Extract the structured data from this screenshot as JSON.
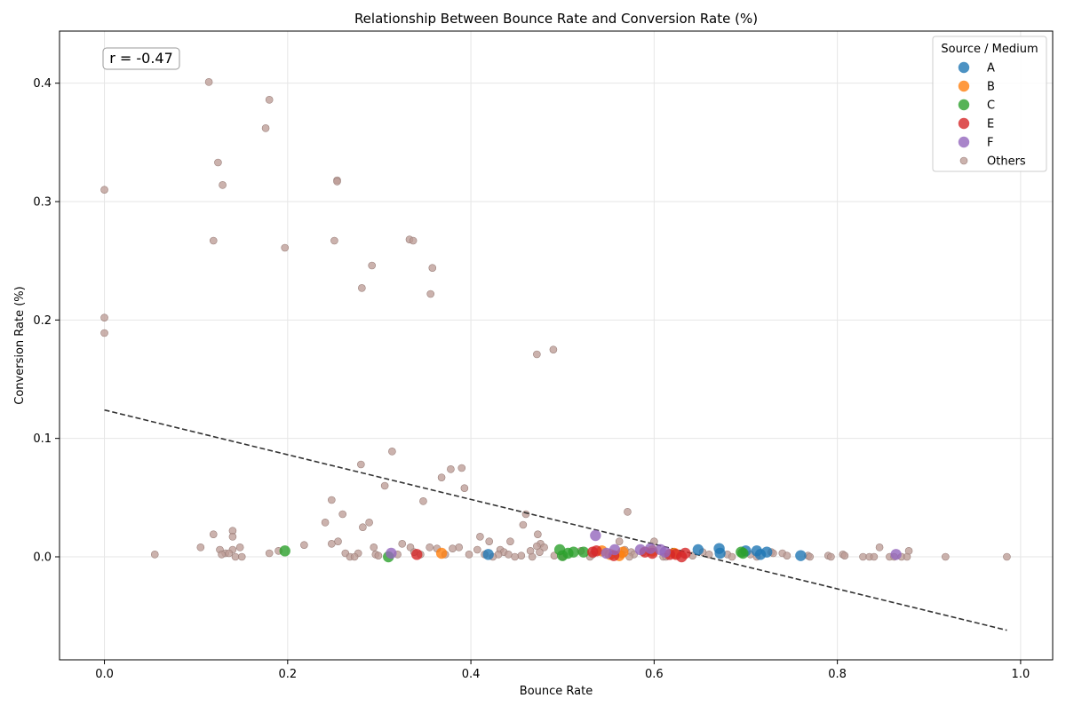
{
  "chart_data": {
    "type": "scatter",
    "title": "Relationship Between Bounce Rate and Conversion Rate (%)",
    "xlabel": "Bounce Rate",
    "ylabel": "Conversion Rate (%)",
    "xlim": [
      -0.049,
      1.035
    ],
    "ylim": [
      -0.087,
      0.444
    ],
    "xticks": [
      0.0,
      0.2,
      0.4,
      0.6,
      0.8,
      1.0
    ],
    "xtick_labels": [
      "0.0",
      "0.2",
      "0.4",
      "0.6",
      "0.8",
      "1.0"
    ],
    "yticks": [
      0.0,
      0.1,
      0.2,
      0.3,
      0.4
    ],
    "ytick_labels": [
      "0.0",
      "0.1",
      "0.2",
      "0.3",
      "0.4"
    ],
    "grid": true,
    "annotation": "r = -0.47",
    "trendline": {
      "x": [
        0.0,
        0.985
      ],
      "y": [
        0.124,
        -0.062
      ],
      "style": "dashed",
      "color": "#333333"
    },
    "legend": {
      "title": "Source / Medium",
      "placement": "top-right"
    },
    "series": [
      {
        "name": "A",
        "color": "#1f77b4",
        "points": [
          [
            0.419,
            0.002
          ],
          [
            0.648,
            0.006
          ],
          [
            0.671,
            0.007
          ],
          [
            0.672,
            0.003
          ],
          [
            0.7,
            0.005
          ],
          [
            0.712,
            0.005
          ],
          [
            0.716,
            0.002
          ],
          [
            0.723,
            0.004
          ],
          [
            0.76,
            0.001
          ]
        ]
      },
      {
        "name": "B",
        "color": "#ff7f0e",
        "points": [
          [
            0.368,
            0.003
          ],
          [
            0.543,
            0.005
          ],
          [
            0.552,
            0.002
          ],
          [
            0.562,
            0.001
          ],
          [
            0.566,
            0.004
          ],
          [
            0.598,
            0.005
          ],
          [
            0.622,
            0.003
          ]
        ]
      },
      {
        "name": "C",
        "color": "#2ca02c",
        "points": [
          [
            0.197,
            0.005
          ],
          [
            0.31,
            0.0
          ],
          [
            0.497,
            0.006
          ],
          [
            0.5,
            0.001
          ],
          [
            0.506,
            0.003
          ],
          [
            0.512,
            0.004
          ],
          [
            0.523,
            0.004
          ],
          [
            0.695,
            0.004
          ],
          [
            0.697,
            0.003
          ]
        ]
      },
      {
        "name": "E",
        "color": "#d62728",
        "points": [
          [
            0.341,
            0.002
          ],
          [
            0.533,
            0.004
          ],
          [
            0.537,
            0.005
          ],
          [
            0.556,
            0.001
          ],
          [
            0.59,
            0.004
          ],
          [
            0.598,
            0.003
          ],
          [
            0.617,
            0.002
          ],
          [
            0.624,
            0.002
          ],
          [
            0.63,
            0.0
          ],
          [
            0.634,
            0.003
          ]
        ]
      },
      {
        "name": "F",
        "color": "#9467bd",
        "points": [
          [
            0.313,
            0.003
          ],
          [
            0.536,
            0.018
          ],
          [
            0.548,
            0.003
          ],
          [
            0.557,
            0.006
          ],
          [
            0.585,
            0.006
          ],
          [
            0.596,
            0.007
          ],
          [
            0.607,
            0.006
          ],
          [
            0.612,
            0.004
          ],
          [
            0.864,
            0.002
          ]
        ]
      },
      {
        "name": "Others",
        "color": "#bc9c96",
        "points": [
          [
            0.114,
            0.401
          ],
          [
            0.18,
            0.386
          ],
          [
            0.176,
            0.362
          ],
          [
            0.124,
            0.333
          ],
          [
            0.129,
            0.314
          ],
          [
            0.0,
            0.31
          ],
          [
            0.254,
            0.318
          ],
          [
            0.254,
            0.317
          ],
          [
            0.119,
            0.267
          ],
          [
            0.251,
            0.267
          ],
          [
            0.333,
            0.268
          ],
          [
            0.337,
            0.267
          ],
          [
            0.197,
            0.261
          ],
          [
            0.292,
            0.246
          ],
          [
            0.358,
            0.244
          ],
          [
            0.281,
            0.227
          ],
          [
            0.356,
            0.222
          ],
          [
            0.0,
            0.202
          ],
          [
            0.0,
            0.189
          ],
          [
            0.49,
            0.175
          ],
          [
            0.472,
            0.171
          ],
          [
            0.314,
            0.089
          ],
          [
            0.28,
            0.078
          ],
          [
            0.39,
            0.075
          ],
          [
            0.378,
            0.074
          ],
          [
            0.368,
            0.067
          ],
          [
            0.306,
            0.06
          ],
          [
            0.393,
            0.058
          ],
          [
            0.248,
            0.048
          ],
          [
            0.348,
            0.047
          ],
          [
            0.571,
            0.038
          ],
          [
            0.26,
            0.036
          ],
          [
            0.46,
            0.036
          ],
          [
            0.241,
            0.029
          ],
          [
            0.289,
            0.029
          ],
          [
            0.457,
            0.027
          ],
          [
            0.282,
            0.025
          ],
          [
            0.14,
            0.022
          ],
          [
            0.473,
            0.019
          ],
          [
            0.119,
            0.019
          ],
          [
            0.14,
            0.017
          ],
          [
            0.41,
            0.017
          ],
          [
            0.255,
            0.013
          ],
          [
            0.42,
            0.013
          ],
          [
            0.443,
            0.013
          ],
          [
            0.562,
            0.013
          ],
          [
            0.6,
            0.013
          ],
          [
            0.248,
            0.011
          ],
          [
            0.325,
            0.011
          ],
          [
            0.476,
            0.011
          ],
          [
            0.218,
            0.01
          ],
          [
            0.472,
            0.009
          ],
          [
            0.334,
            0.008
          ],
          [
            0.355,
            0.008
          ],
          [
            0.387,
            0.008
          ],
          [
            0.48,
            0.008
          ],
          [
            0.105,
            0.008
          ],
          [
            0.148,
            0.008
          ],
          [
            0.294,
            0.008
          ],
          [
            0.363,
            0.007
          ],
          [
            0.38,
            0.007
          ],
          [
            0.846,
            0.008
          ],
          [
            0.14,
            0.006
          ],
          [
            0.126,
            0.006
          ],
          [
            0.407,
            0.006
          ],
          [
            0.432,
            0.006
          ],
          [
            0.568,
            0.006
          ],
          [
            0.878,
            0.005
          ],
          [
            0.19,
            0.005
          ],
          [
            0.18,
            0.003
          ],
          [
            0.263,
            0.003
          ],
          [
            0.277,
            0.003
          ],
          [
            0.338,
            0.004
          ],
          [
            0.436,
            0.004
          ],
          [
            0.465,
            0.005
          ],
          [
            0.475,
            0.004
          ],
          [
            0.52,
            0.005
          ],
          [
            0.575,
            0.004
          ],
          [
            0.588,
            0.004
          ],
          [
            0.653,
            0.004
          ],
          [
            0.728,
            0.004
          ],
          [
            0.73,
            0.003
          ],
          [
            0.74,
            0.003
          ],
          [
            0.132,
            0.003
          ],
          [
            0.136,
            0.003
          ],
          [
            0.055,
            0.002
          ],
          [
            0.128,
            0.002
          ],
          [
            0.296,
            0.002
          ],
          [
            0.32,
            0.002
          ],
          [
            0.345,
            0.002
          ],
          [
            0.372,
            0.002
          ],
          [
            0.398,
            0.002
          ],
          [
            0.415,
            0.002
          ],
          [
            0.43,
            0.002
          ],
          [
            0.441,
            0.002
          ],
          [
            0.455,
            0.001
          ],
          [
            0.491,
            0.001
          ],
          [
            0.533,
            0.002
          ],
          [
            0.565,
            0.002
          ],
          [
            0.578,
            0.002
          ],
          [
            0.642,
            0.001
          ],
          [
            0.66,
            0.002
          ],
          [
            0.68,
            0.002
          ],
          [
            0.705,
            0.002
          ],
          [
            0.745,
            0.001
          ],
          [
            0.768,
            0.001
          ],
          [
            0.79,
            0.001
          ],
          [
            0.806,
            0.002
          ],
          [
            0.808,
            0.001
          ],
          [
            0.143,
            0.0
          ],
          [
            0.15,
            0.0
          ],
          [
            0.268,
            0.0
          ],
          [
            0.273,
            0.0
          ],
          [
            0.299,
            0.001
          ],
          [
            0.424,
            0.0
          ],
          [
            0.448,
            0.0
          ],
          [
            0.467,
            0.0
          ],
          [
            0.5,
            0.0
          ],
          [
            0.53,
            0.0
          ],
          [
            0.573,
            0.0
          ],
          [
            0.61,
            0.0
          ],
          [
            0.613,
            0.0
          ],
          [
            0.685,
            0.0
          ],
          [
            0.712,
            0.0
          ],
          [
            0.77,
            0.0
          ],
          [
            0.793,
            0.0
          ],
          [
            0.828,
            0.0
          ],
          [
            0.835,
            0.0
          ],
          [
            0.84,
            0.0
          ],
          [
            0.857,
            0.0
          ],
          [
            0.862,
            0.0
          ],
          [
            0.87,
            0.0
          ],
          [
            0.876,
            0.0
          ],
          [
            0.918,
            0.0
          ],
          [
            0.985,
            0.0
          ]
        ]
      }
    ]
  }
}
